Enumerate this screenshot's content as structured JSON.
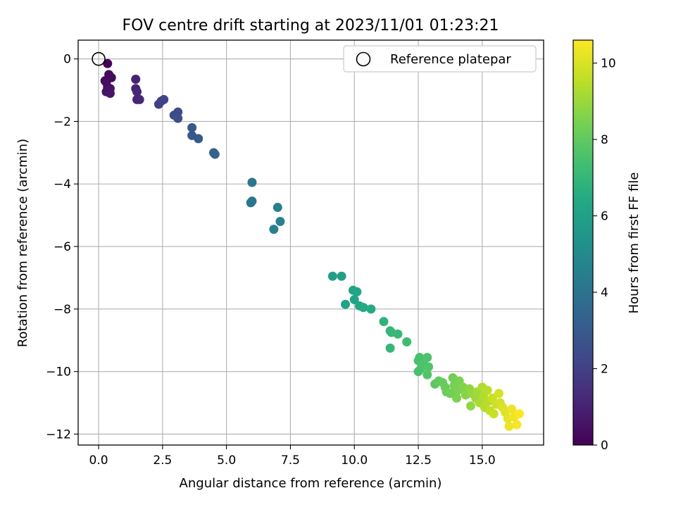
{
  "chart_data": {
    "type": "scatter",
    "title": "FOV centre drift starting at 2023/11/01 01:23:21",
    "xlabel": "Angular distance from reference (arcmin)",
    "ylabel": "Rotation from reference (arcmin)",
    "xlim": [
      -0.8,
      17.4
    ],
    "ylim": [
      -12.35,
      0.6
    ],
    "xticks": [
      0.0,
      2.5,
      5.0,
      7.5,
      10.0,
      12.5,
      15.0
    ],
    "xtick_labels": [
      "0.0",
      "2.5",
      "5.0",
      "7.5",
      "10.0",
      "12.5",
      "15.0"
    ],
    "yticks": [
      0,
      -2,
      -4,
      -6,
      -8,
      -10,
      -12
    ],
    "ytick_labels": [
      "0",
      "−2",
      "−4",
      "−6",
      "−8",
      "−10",
      "−12"
    ],
    "grid": true,
    "legend": {
      "position": "top-right",
      "entries": [
        "Reference platepar"
      ]
    },
    "reference_point": {
      "x": 0.0,
      "y": 0.0
    },
    "colorbar": {
      "label": "Hours from first FF file",
      "min": 0,
      "max": 10.6,
      "ticks": [
        0,
        2,
        4,
        6,
        8,
        10
      ],
      "tick_labels": [
        "0",
        "2",
        "4",
        "6",
        "8",
        "10"
      ],
      "colormap": "viridis"
    },
    "series": [
      {
        "points": [
          {
            "x": 0.35,
            "y": -0.15,
            "h": 0.1
          },
          {
            "x": 0.25,
            "y": -0.7,
            "h": 0.2
          },
          {
            "x": 0.4,
            "y": -0.5,
            "h": 0.3
          },
          {
            "x": 0.5,
            "y": -0.6,
            "h": 0.3
          },
          {
            "x": 0.3,
            "y": -0.75,
            "h": 0.4
          },
          {
            "x": 0.35,
            "y": -0.9,
            "h": 0.4
          },
          {
            "x": 0.45,
            "y": -0.95,
            "h": 0.5
          },
          {
            "x": 0.3,
            "y": -1.05,
            "h": 0.5
          },
          {
            "x": 0.45,
            "y": -1.1,
            "h": 0.6
          },
          {
            "x": 1.45,
            "y": -0.65,
            "h": 1.0
          },
          {
            "x": 1.45,
            "y": -0.95,
            "h": 1.0
          },
          {
            "x": 1.5,
            "y": -1.05,
            "h": 1.1
          },
          {
            "x": 1.5,
            "y": -1.3,
            "h": 1.1
          },
          {
            "x": 1.6,
            "y": -1.3,
            "h": 1.2
          },
          {
            "x": 2.35,
            "y": -1.45,
            "h": 2.0
          },
          {
            "x": 2.45,
            "y": -1.35,
            "h": 2.0
          },
          {
            "x": 2.55,
            "y": -1.3,
            "h": 2.1
          },
          {
            "x": 2.95,
            "y": -1.8,
            "h": 2.4
          },
          {
            "x": 3.1,
            "y": -1.7,
            "h": 2.4
          },
          {
            "x": 3.1,
            "y": -1.9,
            "h": 2.5
          },
          {
            "x": 3.65,
            "y": -2.2,
            "h": 2.9
          },
          {
            "x": 3.65,
            "y": -2.45,
            "h": 2.9
          },
          {
            "x": 3.9,
            "y": -2.55,
            "h": 3.0
          },
          {
            "x": 4.5,
            "y": -3.0,
            "h": 3.3
          },
          {
            "x": 4.55,
            "y": -3.05,
            "h": 3.3
          },
          {
            "x": 6.0,
            "y": -3.95,
            "h": 4.1
          },
          {
            "x": 5.95,
            "y": -4.6,
            "h": 4.2
          },
          {
            "x": 6.0,
            "y": -4.55,
            "h": 4.2
          },
          {
            "x": 7.0,
            "y": -4.75,
            "h": 4.6
          },
          {
            "x": 7.1,
            "y": -5.2,
            "h": 4.7
          },
          {
            "x": 6.85,
            "y": -5.45,
            "h": 4.6
          },
          {
            "x": 9.15,
            "y": -6.95,
            "h": 5.9
          },
          {
            "x": 9.5,
            "y": -6.95,
            "h": 6.0
          },
          {
            "x": 9.95,
            "y": -7.4,
            "h": 6.1
          },
          {
            "x": 10.1,
            "y": -7.45,
            "h": 6.2
          },
          {
            "x": 9.65,
            "y": -7.85,
            "h": 6.1
          },
          {
            "x": 10.0,
            "y": -7.7,
            "h": 6.2
          },
          {
            "x": 10.2,
            "y": -7.9,
            "h": 6.3
          },
          {
            "x": 10.35,
            "y": -7.95,
            "h": 6.4
          },
          {
            "x": 10.65,
            "y": -8.0,
            "h": 6.5
          },
          {
            "x": 11.15,
            "y": -8.4,
            "h": 6.8
          },
          {
            "x": 11.4,
            "y": -8.7,
            "h": 6.9
          },
          {
            "x": 11.45,
            "y": -8.75,
            "h": 7.0
          },
          {
            "x": 11.7,
            "y": -8.8,
            "h": 7.1
          },
          {
            "x": 11.4,
            "y": -9.25,
            "h": 7.0
          },
          {
            "x": 12.05,
            "y": -9.05,
            "h": 7.3
          },
          {
            "x": 12.55,
            "y": -9.55,
            "h": 7.5
          },
          {
            "x": 12.5,
            "y": -9.65,
            "h": 7.5
          },
          {
            "x": 12.7,
            "y": -9.75,
            "h": 7.6
          },
          {
            "x": 12.85,
            "y": -9.55,
            "h": 7.6
          },
          {
            "x": 12.6,
            "y": -9.9,
            "h": 7.6
          },
          {
            "x": 12.9,
            "y": -9.85,
            "h": 7.7
          },
          {
            "x": 12.5,
            "y": -10.0,
            "h": 7.5
          },
          {
            "x": 12.85,
            "y": -10.1,
            "h": 7.7
          },
          {
            "x": 13.15,
            "y": -10.4,
            "h": 7.9
          },
          {
            "x": 13.3,
            "y": -10.3,
            "h": 8.0
          },
          {
            "x": 13.45,
            "y": -10.35,
            "h": 8.1
          },
          {
            "x": 13.55,
            "y": -10.5,
            "h": 8.1
          },
          {
            "x": 13.6,
            "y": -10.65,
            "h": 8.2
          },
          {
            "x": 13.75,
            "y": -10.7,
            "h": 8.3
          },
          {
            "x": 13.85,
            "y": -10.2,
            "h": 8.3
          },
          {
            "x": 13.9,
            "y": -10.45,
            "h": 8.4
          },
          {
            "x": 14.05,
            "y": -10.6,
            "h": 8.5
          },
          {
            "x": 14.1,
            "y": -10.3,
            "h": 8.5
          },
          {
            "x": 14.0,
            "y": -10.85,
            "h": 8.5
          },
          {
            "x": 14.25,
            "y": -10.5,
            "h": 8.6
          },
          {
            "x": 14.35,
            "y": -10.75,
            "h": 8.7
          },
          {
            "x": 14.5,
            "y": -10.55,
            "h": 8.8
          },
          {
            "x": 14.6,
            "y": -10.7,
            "h": 8.9
          },
          {
            "x": 14.55,
            "y": -11.1,
            "h": 8.9
          },
          {
            "x": 14.75,
            "y": -10.85,
            "h": 9.0
          },
          {
            "x": 14.8,
            "y": -10.65,
            "h": 9.1
          },
          {
            "x": 14.9,
            "y": -11.0,
            "h": 9.2
          },
          {
            "x": 15.0,
            "y": -10.5,
            "h": 9.3
          },
          {
            "x": 15.05,
            "y": -10.8,
            "h": 9.3
          },
          {
            "x": 15.1,
            "y": -11.15,
            "h": 9.4
          },
          {
            "x": 15.2,
            "y": -10.6,
            "h": 9.5
          },
          {
            "x": 15.25,
            "y": -10.95,
            "h": 9.5
          },
          {
            "x": 15.3,
            "y": -11.25,
            "h": 9.6
          },
          {
            "x": 15.4,
            "y": -10.85,
            "h": 9.7
          },
          {
            "x": 15.45,
            "y": -11.35,
            "h": 9.7
          },
          {
            "x": 15.55,
            "y": -11.05,
            "h": 9.8
          },
          {
            "x": 15.65,
            "y": -10.7,
            "h": 9.9
          },
          {
            "x": 15.7,
            "y": -11.0,
            "h": 9.9
          },
          {
            "x": 15.8,
            "y": -11.15,
            "h": 10.0
          },
          {
            "x": 15.9,
            "y": -11.3,
            "h": 10.1
          },
          {
            "x": 16.0,
            "y": -11.5,
            "h": 10.2
          },
          {
            "x": 16.05,
            "y": -11.75,
            "h": 10.3
          },
          {
            "x": 16.15,
            "y": -11.2,
            "h": 10.3
          },
          {
            "x": 16.25,
            "y": -11.45,
            "h": 10.4
          },
          {
            "x": 16.35,
            "y": -11.7,
            "h": 10.5
          },
          {
            "x": 16.45,
            "y": -11.35,
            "h": 10.6
          }
        ]
      }
    ]
  }
}
